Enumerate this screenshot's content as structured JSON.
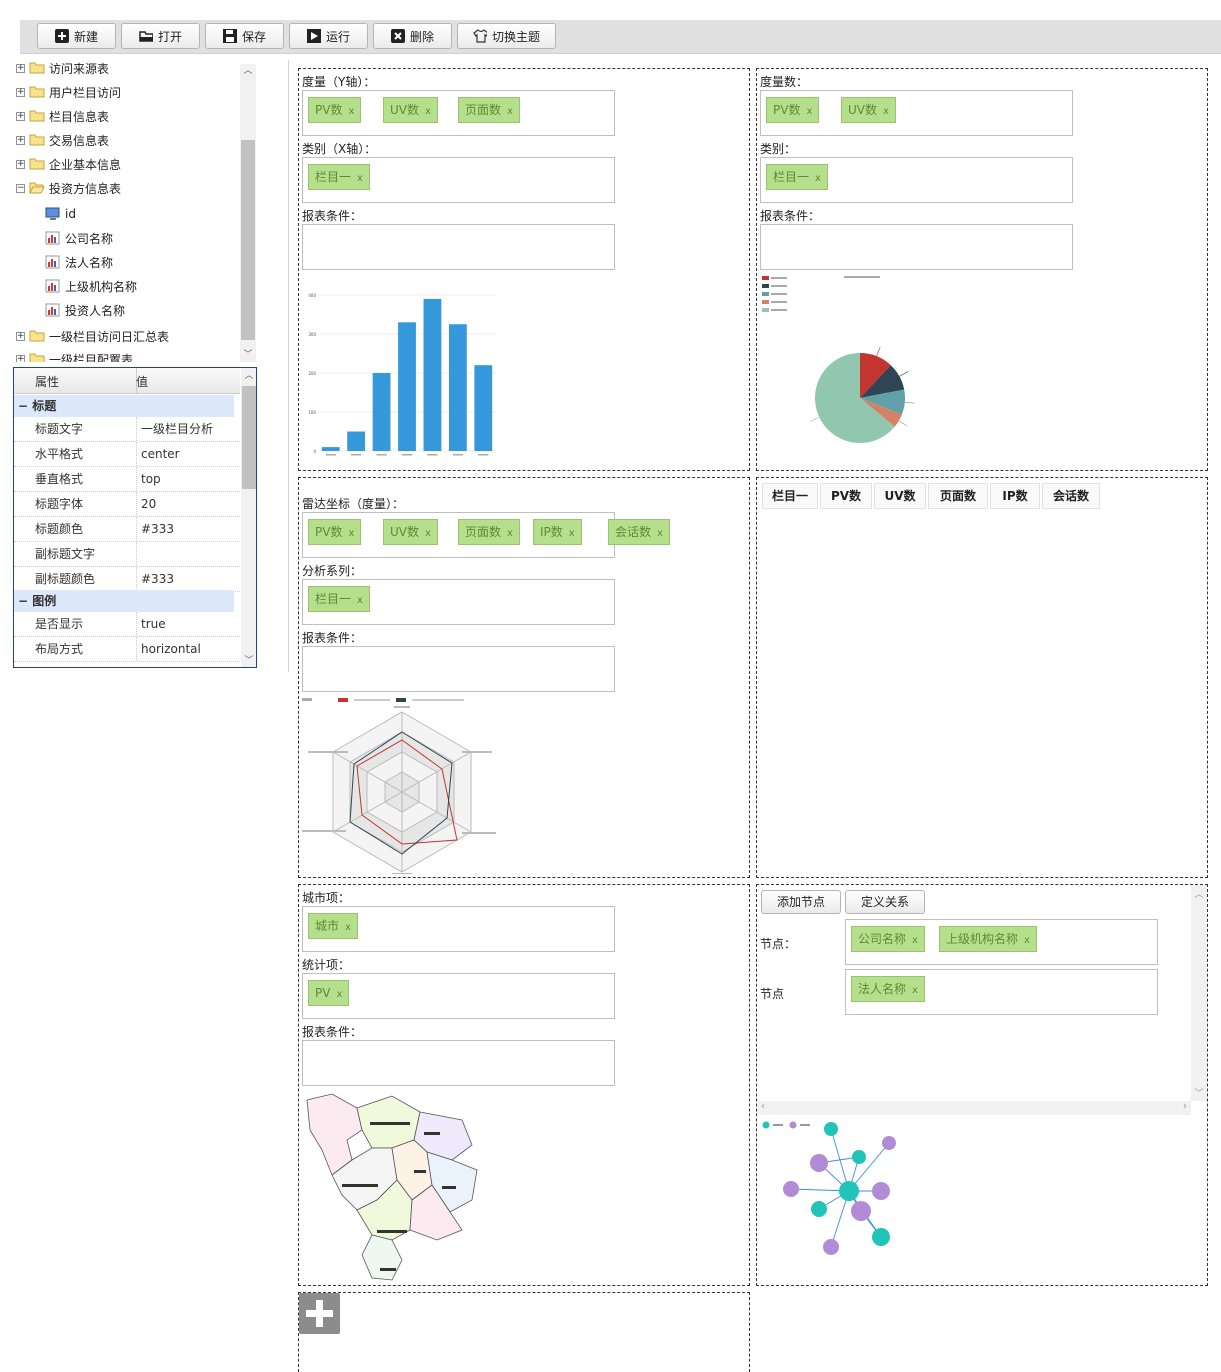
{
  "toolbar": {
    "new": "新建",
    "open": "打开",
    "save": "保存",
    "run": "运行",
    "delete": "删除",
    "theme": "切换主题"
  },
  "tree": {
    "items": [
      "访问来源表",
      "用户栏目访问",
      "栏目信息表",
      "交易信息表",
      "企业基本信息",
      "投资方信息表"
    ],
    "children": [
      "id",
      "公司名称",
      "法人名称",
      "上级机构名称",
      "投资人名称"
    ],
    "after": [
      "一级栏目访问日汇总表",
      "一级栏目配置表"
    ]
  },
  "props": {
    "head_key": "属性",
    "head_val": "值",
    "group_title": "标题",
    "group_legend": "图例",
    "rows_title": [
      {
        "k": "标题文字",
        "v": "一级栏目分析"
      },
      {
        "k": "水平格式",
        "v": "center"
      },
      {
        "k": "垂直格式",
        "v": "top"
      },
      {
        "k": "标题字体",
        "v": "20"
      },
      {
        "k": "标题颜色",
        "v": "#333"
      },
      {
        "k": "副标题文字",
        "v": ""
      },
      {
        "k": "副标题颜色",
        "v": "#333"
      }
    ],
    "rows_legend": [
      {
        "k": "是否显示",
        "v": "true"
      },
      {
        "k": "布局方式",
        "v": "horizontal"
      }
    ]
  },
  "bar_panel": {
    "y_label": "度量（Y轴）：",
    "y_tags": [
      "PV数",
      "UV数",
      "页面数"
    ],
    "x_label": "类别（X轴）：",
    "x_tags": [
      "栏目一"
    ],
    "cond_label": "报表条件："
  },
  "pie_panel": {
    "m_label": "度量数：",
    "m_tags": [
      "PV数",
      "UV数"
    ],
    "c_label": "类别：",
    "c_tags": [
      "栏目一"
    ],
    "cond_label": "报表条件："
  },
  "radar_panel": {
    "r_label": "雷达坐标（度量）：",
    "r_tags": [
      "PV数",
      "UV数",
      "页面数",
      "IP数",
      "会话数"
    ],
    "s_label": "分析系列：",
    "s_tags": [
      "栏目一"
    ],
    "cond_label": "报表条件："
  },
  "table_panel": {
    "headers": [
      "栏目一",
      "PV数",
      "UV数",
      "页面数",
      "IP数",
      "会话数"
    ]
  },
  "map_panel": {
    "city_label": "城市项：",
    "city_tags": [
      "城市"
    ],
    "stat_label": "统计项：",
    "stat_tags": [
      "PV"
    ],
    "cond_label": "报表条件："
  },
  "graph_panel": {
    "add_node": "添加节点",
    "define_rel": "定义关系",
    "node_label_1": "节点：",
    "node_tags_1": [
      "公司名称",
      "上级机构名称"
    ],
    "node_label_2": "节点",
    "node_tags_2": [
      "法人名称"
    ]
  },
  "colors": {
    "tag_bg": "#b6df8d",
    "tag_text": "#5d8c2f",
    "bar": "#3498db",
    "pie_red": "#c23531",
    "pie_dark": "#2f4554",
    "pie_teal": "#61a0a8",
    "pie_orange": "#d48265",
    "pie_green": "#91c7ae",
    "graph_teal": "#22c3b8",
    "graph_purple": "#b28bd6"
  },
  "chart_data": [
    {
      "type": "bar",
      "categories": [
        "",
        "",
        "",
        "",
        "",
        "",
        ""
      ],
      "values": [
        10,
        50,
        200,
        330,
        390,
        325,
        220
      ],
      "ylim": [
        0,
        400
      ],
      "yticks": [
        "400",
        "300",
        "200",
        "100",
        "0"
      ]
    },
    {
      "type": "pie",
      "values": [
        12,
        10,
        9,
        5,
        64
      ]
    }
  ]
}
